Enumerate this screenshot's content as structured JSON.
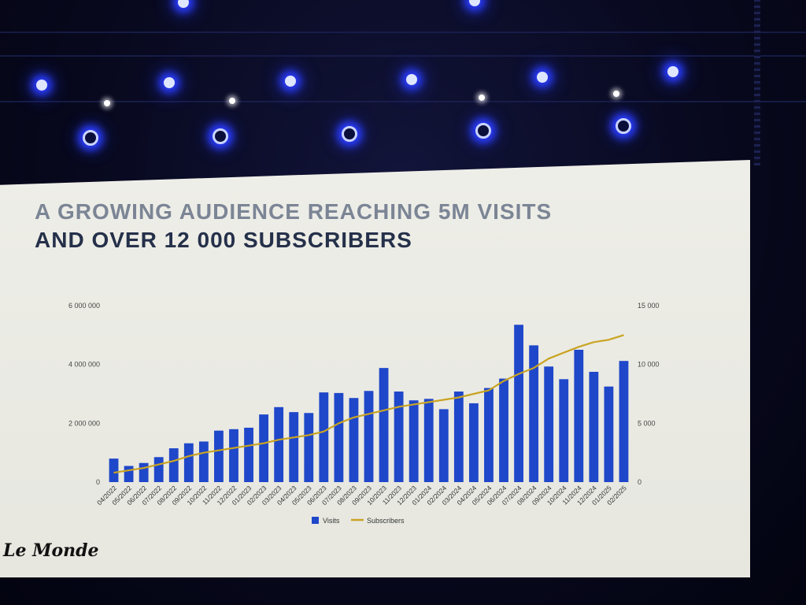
{
  "slide": {
    "title_line1": "A GROWING AUDIENCE REACHING 5M VISITS",
    "title_line2": "AND OVER 12 000 SUBSCRIBERS",
    "logo_text": "Le Monde"
  },
  "colors": {
    "visits_bar": "#1f47c9",
    "subscribers_line": "#c9a422",
    "title_light": "#7b8595",
    "title_dark": "#25304a",
    "screen_bg": "#eeeee8"
  },
  "chart_data": {
    "type": "bar",
    "title": "",
    "xlabel": "",
    "ylabel": "",
    "y2label": "",
    "categories": [
      "04/2022",
      "05/2022",
      "06/2022",
      "07/2022",
      "08/2022",
      "09/2022",
      "10/2022",
      "11/2022",
      "12/2022",
      "01/2023",
      "02/2023",
      "03/2023",
      "04/2023",
      "05/2023",
      "06/2023",
      "07/2023",
      "08/2023",
      "09/2023",
      "10/2023",
      "11/2023",
      "12/2023",
      "01/2024",
      "02/2024",
      "03/2024",
      "04/2024",
      "05/2024",
      "06/2024",
      "07/2024",
      "08/2024",
      "09/2024",
      "10/2024",
      "11/2024",
      "12/2024",
      "01/2025",
      "02/2025"
    ],
    "series": [
      {
        "name": "Visits",
        "type": "bar",
        "axis": "left",
        "color": "#1f47c9",
        "values": [
          800000,
          550000,
          650000,
          850000,
          1150000,
          1320000,
          1380000,
          1750000,
          1800000,
          1850000,
          2300000,
          2550000,
          2380000,
          2350000,
          3050000,
          3030000,
          2860000,
          3100000,
          3880000,
          3080000,
          2780000,
          2830000,
          2480000,
          3080000,
          2680000,
          3200000,
          3520000,
          5350000,
          4650000,
          3930000,
          3500000,
          4500000,
          3750000,
          3250000,
          4120000
        ]
      },
      {
        "name": "Subscribers",
        "type": "line",
        "axis": "right",
        "color": "#c9a422",
        "values": [
          800,
          1000,
          1200,
          1500,
          1800,
          2200,
          2500,
          2700,
          2900,
          3100,
          3300,
          3600,
          3800,
          4000,
          4300,
          5000,
          5500,
          5800,
          6100,
          6400,
          6600,
          6800,
          7000,
          7200,
          7500,
          7800,
          8600,
          9200,
          9700,
          10500,
          11000,
          11500,
          11900,
          12100,
          12500
        ]
      }
    ],
    "y_left": {
      "range": [
        0,
        6000000
      ],
      "ticks": [
        0,
        2000000,
        4000000,
        6000000
      ],
      "tick_labels": [
        "0",
        "2 000 000",
        "4 000 000",
        "6 000 000"
      ]
    },
    "y_right": {
      "range": [
        0,
        15000
      ],
      "ticks": [
        0,
        5000,
        10000,
        15000
      ],
      "tick_labels": [
        "0",
        "5 000",
        "10 000",
        "15 000"
      ]
    },
    "grid": false,
    "legend": {
      "position": "bottom",
      "entries": [
        "Visits",
        "Subscribers"
      ]
    }
  }
}
